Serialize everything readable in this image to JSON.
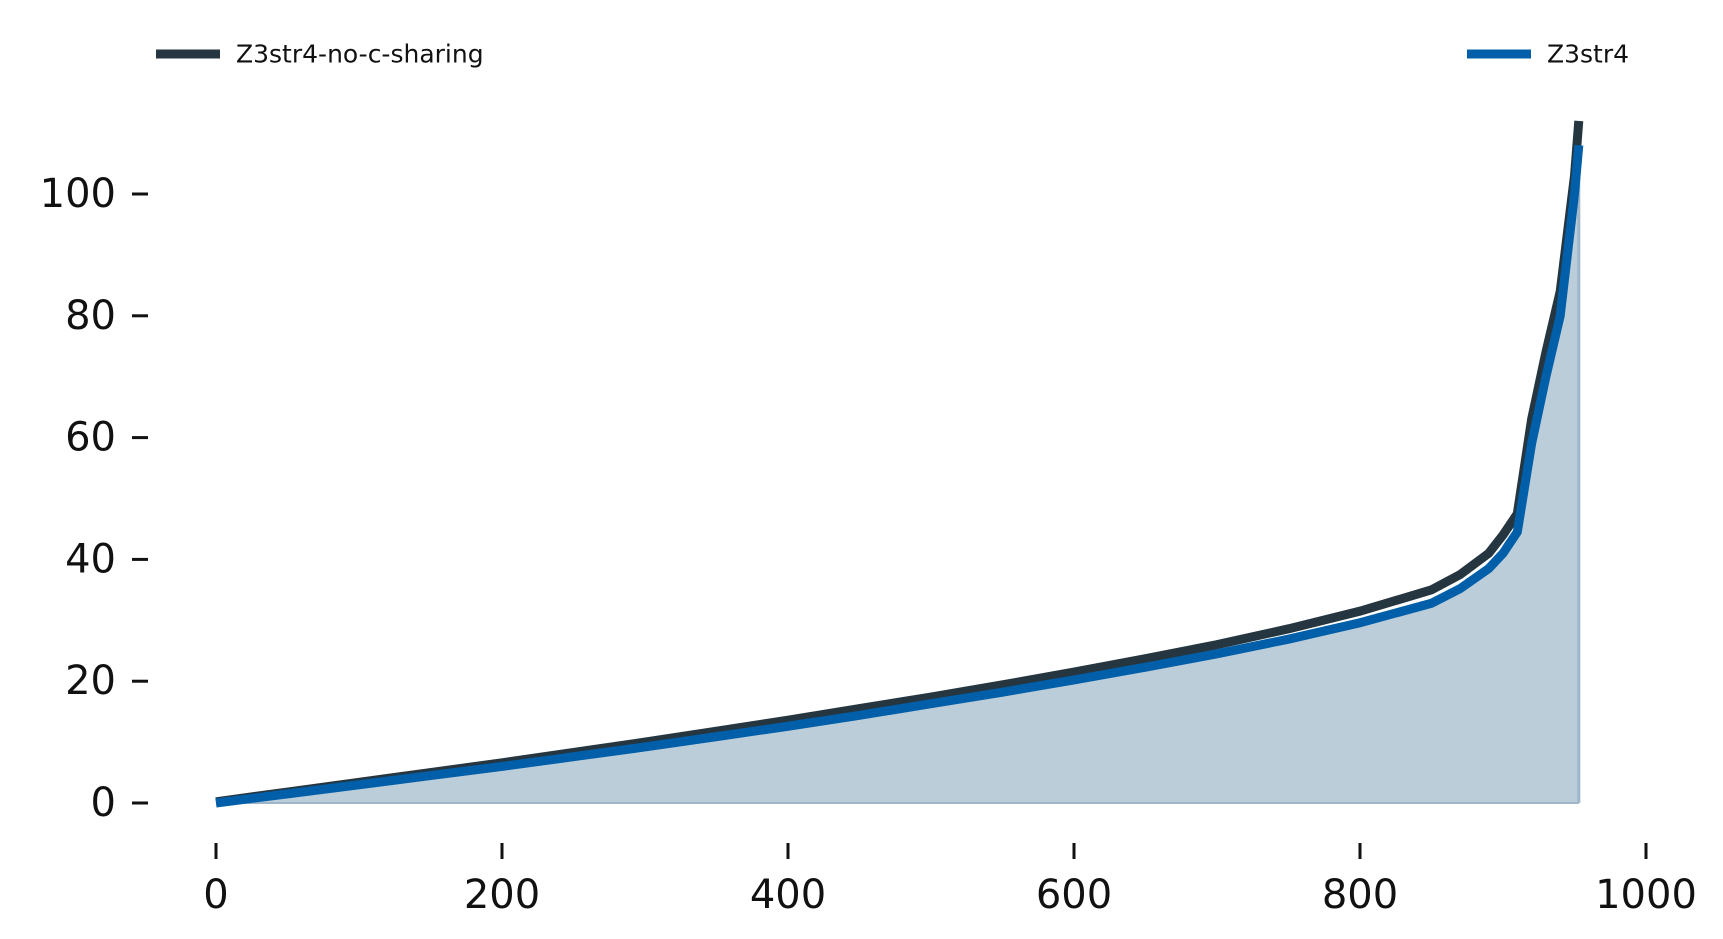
{
  "chart_data": {
    "type": "line",
    "grid": false,
    "legend_placement": "top",
    "xlim": [
      -20,
      1010
    ],
    "ylim": [
      -5,
      113
    ],
    "x_ticks": [
      0,
      200,
      400,
      600,
      800,
      1000
    ],
    "y_ticks": [
      0,
      20,
      40,
      60,
      80,
      100
    ],
    "x_tick_labels": [
      "0",
      "200",
      "400",
      "600",
      "800",
      "1000"
    ],
    "y_tick_labels": [
      "0",
      "20",
      "40",
      "60",
      "80",
      "100"
    ],
    "series": [
      {
        "name": "Z3str4-no-c-sharing",
        "color": "#263640",
        "fill": false,
        "x": [
          0,
          50,
          100,
          150,
          200,
          250,
          300,
          350,
          400,
          450,
          500,
          550,
          600,
          650,
          700,
          750,
          800,
          850,
          870,
          890,
          900,
          910,
          920,
          930,
          940,
          950,
          953
        ],
        "y": [
          0.2,
          1.8,
          3.4,
          5.0,
          6.6,
          8.3,
          10.0,
          11.8,
          13.6,
          15.5,
          17.4,
          19.4,
          21.5,
          23.7,
          26.0,
          28.6,
          31.5,
          35.0,
          37.5,
          41.0,
          44.0,
          47.5,
          63.0,
          74.0,
          84.0,
          103.0,
          112.0
        ]
      },
      {
        "name": "Z3str4",
        "color": "#005fa8",
        "fill": true,
        "fill_color": "#bccdda",
        "x": [
          0,
          50,
          100,
          150,
          200,
          250,
          300,
          350,
          400,
          450,
          500,
          550,
          600,
          650,
          700,
          750,
          800,
          850,
          870,
          890,
          900,
          910,
          920,
          930,
          940,
          950,
          953
        ],
        "y": [
          0.0,
          1.5,
          3.0,
          4.5,
          6.0,
          7.6,
          9.2,
          10.9,
          12.6,
          14.4,
          16.3,
          18.2,
          20.2,
          22.3,
          24.5,
          26.9,
          29.6,
          32.8,
          35.2,
          38.5,
          41.0,
          44.5,
          59.0,
          70.0,
          80.0,
          100.0,
          108.0
        ]
      }
    ]
  }
}
